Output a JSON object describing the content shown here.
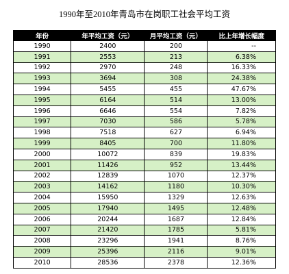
{
  "title": "1990年至2010年青岛市在岗职工社会平均工资",
  "headers": [
    "年份",
    "年平均工资（元）",
    "月平均工资（元）",
    "比上年增长幅度"
  ],
  "rows": [
    [
      "1990",
      "2400",
      "200",
      "--"
    ],
    [
      "1991",
      "2553",
      "213",
      "6.38%"
    ],
    [
      "1992",
      "2970",
      "248",
      "16.33%"
    ],
    [
      "1993",
      "3694",
      "308",
      "24.38%"
    ],
    [
      "1994",
      "5455",
      "455",
      "47.67%"
    ],
    [
      "1995",
      "6164",
      "514",
      "13.00%"
    ],
    [
      "1996",
      "6646",
      "554",
      "7.82%"
    ],
    [
      "1997",
      "7030",
      "586",
      "5.78%"
    ],
    [
      "1998",
      "7518",
      "627",
      "6.94%"
    ],
    [
      "1999",
      "8405",
      "700",
      "11.80%"
    ],
    [
      "2000",
      "10072",
      "839",
      "19.83%"
    ],
    [
      "2001",
      "11426",
      "952",
      "13.44%"
    ],
    [
      "2002",
      "12839",
      "1070",
      "12.37%"
    ],
    [
      "2003",
      "14162",
      "1180",
      "10.30%"
    ],
    [
      "2004",
      "15950",
      "1329",
      "12.63%"
    ],
    [
      "2005",
      "17940",
      "1495",
      "12.48%"
    ],
    [
      "2006",
      "20244",
      "1687",
      "12.84%"
    ],
    [
      "2007",
      "21420",
      "1785",
      "5.81%"
    ],
    [
      "2008",
      "23296",
      "1941",
      "8.76%"
    ],
    [
      "2009",
      "25396",
      "2116",
      "9.01%"
    ],
    [
      "2010",
      "28536",
      "2378",
      "12.36%"
    ]
  ],
  "colors": {
    "header_bg": "#000000",
    "header_text": "#ffffff",
    "alt_row_bg": "#d6f0c6",
    "row_bg": "#ffffff"
  }
}
